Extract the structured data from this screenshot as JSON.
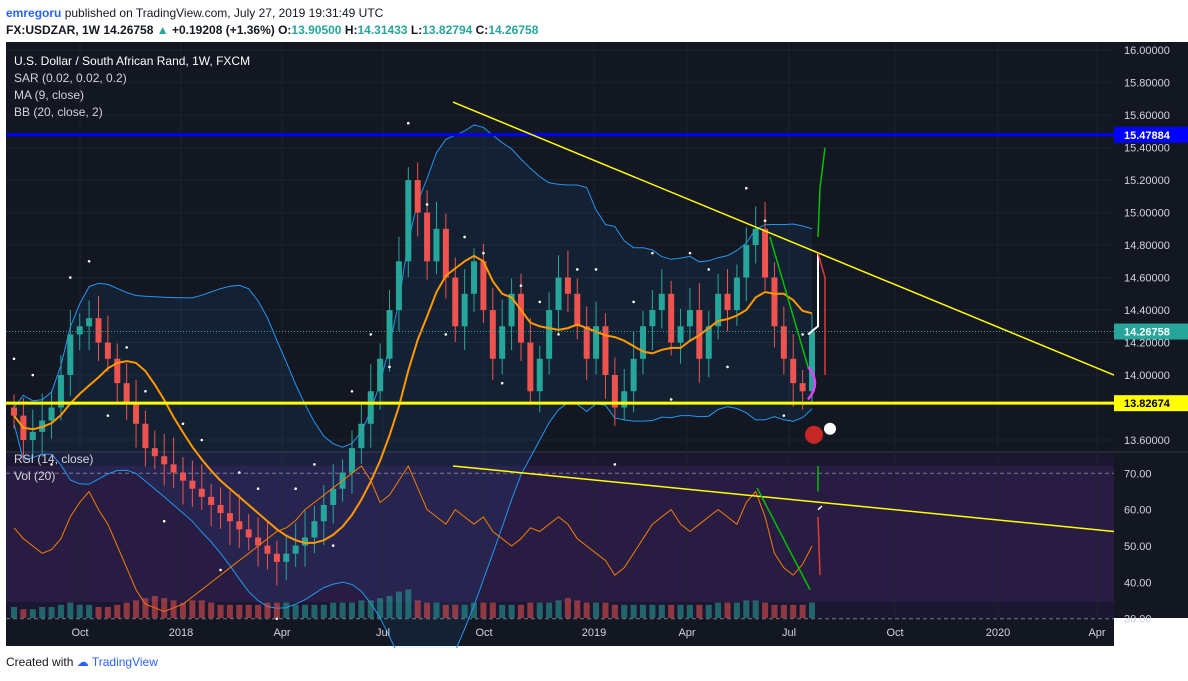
{
  "header": {
    "author": "emregoru",
    "published_text": "published on TradingView.com, July 27, 2019 19:31:49 UTC",
    "symbol": "FX:USDZAR, 1W",
    "last": "14.26758",
    "change": "+0.19208 (+1.36%)",
    "o_label": "O:",
    "o": "13.90500",
    "h_label": "H:",
    "h": "14.31433",
    "l_label": "L:",
    "l": "13.82794",
    "c_label": "C:",
    "c": "14.26758"
  },
  "legend": {
    "title": "U.S. Dollar / South African Rand, 1W, FXCM",
    "sar": "SAR (0.02, 0.02, 0.2)",
    "ma": "MA (9, close)",
    "bb": "BB (20, close, 2)",
    "rsi": "RSI (14, close)",
    "vol": "Vol (20)"
  },
  "footer": {
    "created_with": "Created with",
    "brand": "TradingView"
  },
  "colors": {
    "bg": "#131722",
    "up": "#26a69a",
    "down": "#ef5350",
    "ma": "#ff9800",
    "bb": "#2196f3",
    "rsi": "#f57c00",
    "blue_line": "#0000ff",
    "yellow": "#ffff00"
  },
  "chart_data": {
    "type": "candlestick",
    "symbol": "FX:USDZAR",
    "interval": "1W",
    "x_ticks": [
      "Oct",
      "2018",
      "Apr",
      "Jul",
      "Oct",
      "2019",
      "Apr",
      "Jul",
      "Oct",
      "2020",
      "Apr"
    ],
    "price_axis": [
      "16.00000",
      "15.80000",
      "15.60000",
      "15.40000",
      "15.20000",
      "15.00000",
      "14.80000",
      "14.60000",
      "14.40000",
      "14.20000",
      "14.00000",
      "13.60000"
    ],
    "ylim": [
      13.6,
      16.05
    ],
    "horizontal_levels": [
      {
        "value": 15.47884,
        "label": "15.47884",
        "color": "#0000ff"
      },
      {
        "value": 13.82674,
        "label": "13.82674",
        "color": "#ffff00"
      }
    ],
    "last_price_label": "14.26758",
    "closes": [
      13.75,
      13.6,
      13.65,
      13.72,
      13.8,
      14.0,
      14.25,
      14.3,
      14.35,
      14.2,
      14.1,
      13.95,
      13.82,
      13.7,
      13.55,
      13.5,
      13.45,
      13.4,
      13.35,
      13.3,
      13.25,
      13.2,
      13.15,
      13.1,
      13.05,
      13.0,
      12.95,
      12.9,
      12.85,
      12.9,
      12.95,
      13.0,
      13.1,
      13.2,
      13.3,
      13.4,
      13.55,
      13.7,
      13.9,
      14.1,
      14.4,
      14.7,
      15.2,
      15.0,
      14.7,
      14.9,
      14.6,
      14.3,
      14.5,
      14.7,
      14.4,
      14.1,
      14.3,
      14.5,
      14.2,
      13.9,
      14.1,
      14.4,
      14.6,
      14.5,
      14.3,
      14.1,
      14.3,
      14.0,
      13.8,
      13.9,
      14.1,
      14.3,
      14.4,
      14.5,
      14.2,
      14.3,
      14.4,
      14.1,
      14.3,
      14.5,
      14.4,
      14.6,
      14.8,
      14.9,
      14.6,
      14.3,
      14.1,
      13.95,
      13.9,
      14.26758
    ],
    "rsi_axis": [
      "70.00",
      "60.00",
      "50.00",
      "40.00",
      "30.00"
    ],
    "rsi_values": [
      55,
      52,
      50,
      48,
      49,
      52,
      58,
      62,
      65,
      60,
      56,
      50,
      44,
      38,
      34,
      33,
      32,
      33,
      34,
      36,
      38,
      40,
      42,
      44,
      46,
      48,
      50,
      52,
      54,
      55,
      57,
      60,
      62,
      64,
      66,
      68,
      70,
      72,
      68,
      62,
      64,
      68,
      72,
      66,
      60,
      58,
      56,
      60,
      58,
      56,
      58,
      54,
      52,
      50,
      52,
      55,
      54,
      56,
      58,
      56,
      52,
      50,
      48,
      46,
      42,
      44,
      48,
      52,
      56,
      58,
      60,
      56,
      54,
      56,
      58,
      60,
      58,
      56,
      62,
      65,
      58,
      48,
      44,
      42,
      45,
      50
    ],
    "volume": [
      5,
      4,
      4,
      5,
      5,
      6,
      7,
      6,
      6,
      5,
      5,
      6,
      7,
      8,
      9,
      10,
      9,
      8,
      7,
      8,
      8,
      7,
      6,
      6,
      6,
      6,
      6,
      7,
      7,
      7,
      6,
      6,
      6,
      6,
      7,
      7,
      7,
      8,
      8,
      9,
      10,
      12,
      13,
      8,
      7,
      7,
      6,
      6,
      6,
      7,
      7,
      7,
      6,
      6,
      6,
      7,
      7,
      7,
      8,
      9,
      8,
      7,
      7,
      7,
      6,
      6,
      6,
      6,
      6,
      6,
      6,
      6,
      6,
      6,
      6,
      7,
      7,
      7,
      8,
      8,
      7,
      6,
      6,
      6,
      6,
      7
    ]
  }
}
